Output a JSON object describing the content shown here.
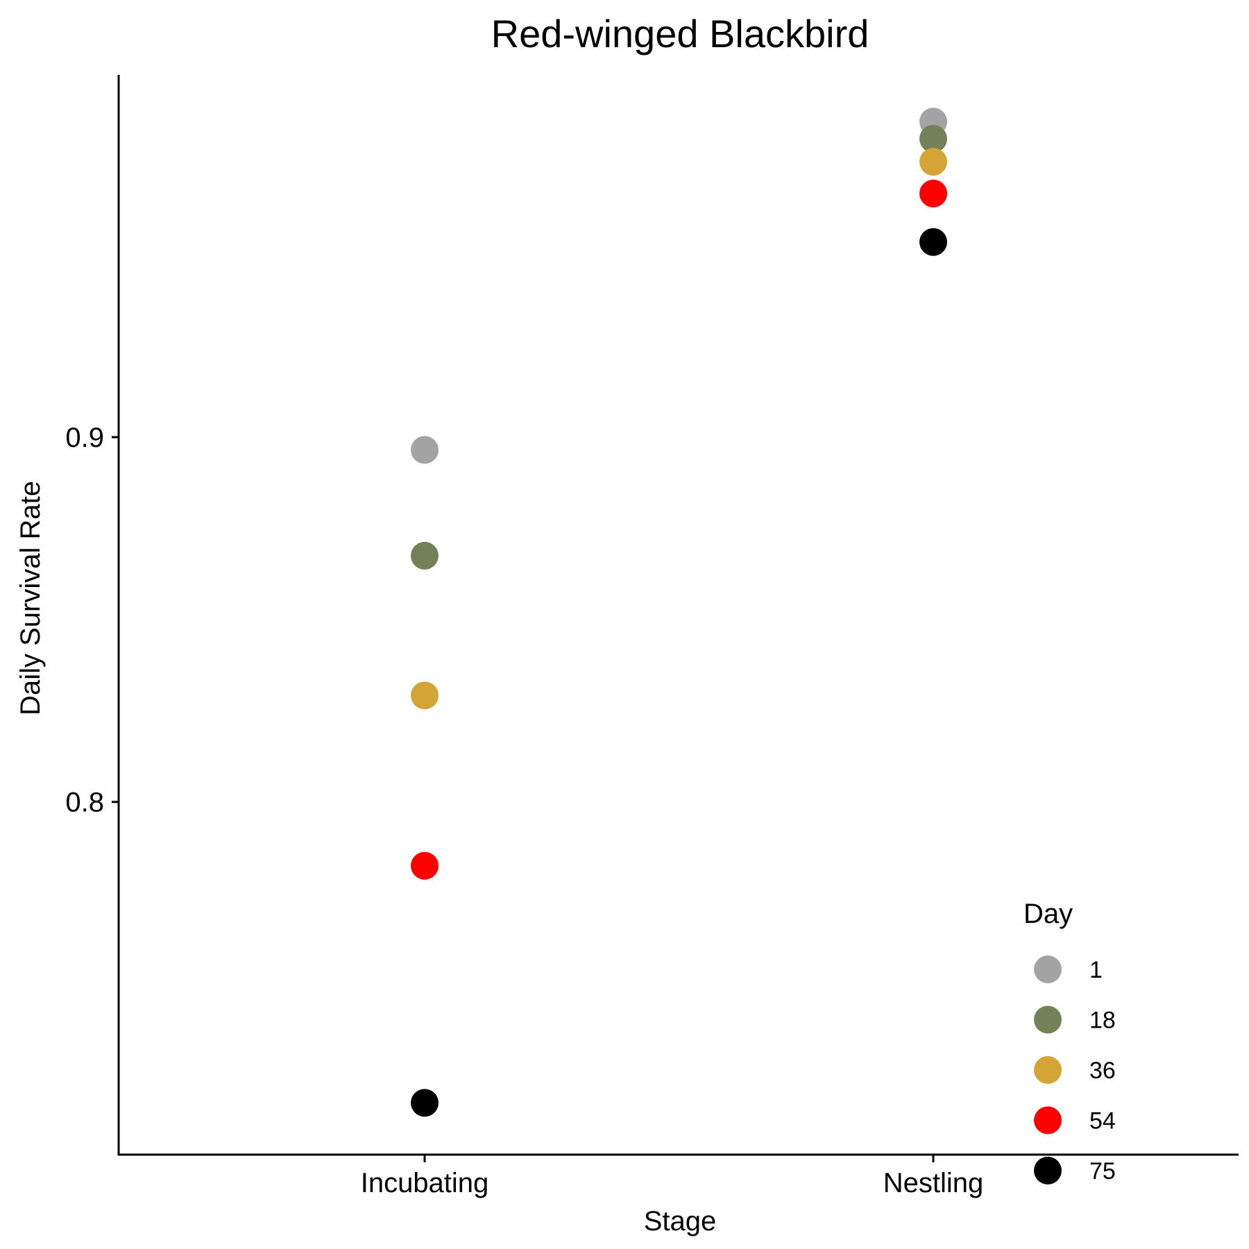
{
  "chart_data": {
    "type": "scatter",
    "title": "Red-winged Blackbird",
    "xlabel": "Stage",
    "ylabel": "Daily Survival Rate",
    "categories": [
      "Incubating",
      "Nestling"
    ],
    "ylim": [
      0.7035,
      0.9993
    ],
    "yticks": [
      {
        "value": 0.8,
        "label": "0.8"
      },
      {
        "value": 0.9,
        "label": "0.9"
      }
    ],
    "grid": false,
    "legend": {
      "title": "Day",
      "placement": "bottom-right"
    },
    "series": [
      {
        "name": "1",
        "color": "#A3A3A3",
        "values": [
          0.8965,
          0.9865
        ]
      },
      {
        "name": "18",
        "color": "#738058",
        "values": [
          0.8675,
          0.9818
        ]
      },
      {
        "name": "36",
        "color": "#D4A536",
        "values": [
          0.8292,
          0.9755
        ]
      },
      {
        "name": "54",
        "color": "#FF0000",
        "values": [
          0.7825,
          0.9668
        ]
      },
      {
        "name": "75",
        "color": "#000000",
        "values": [
          0.7175,
          0.9535
        ]
      }
    ]
  }
}
